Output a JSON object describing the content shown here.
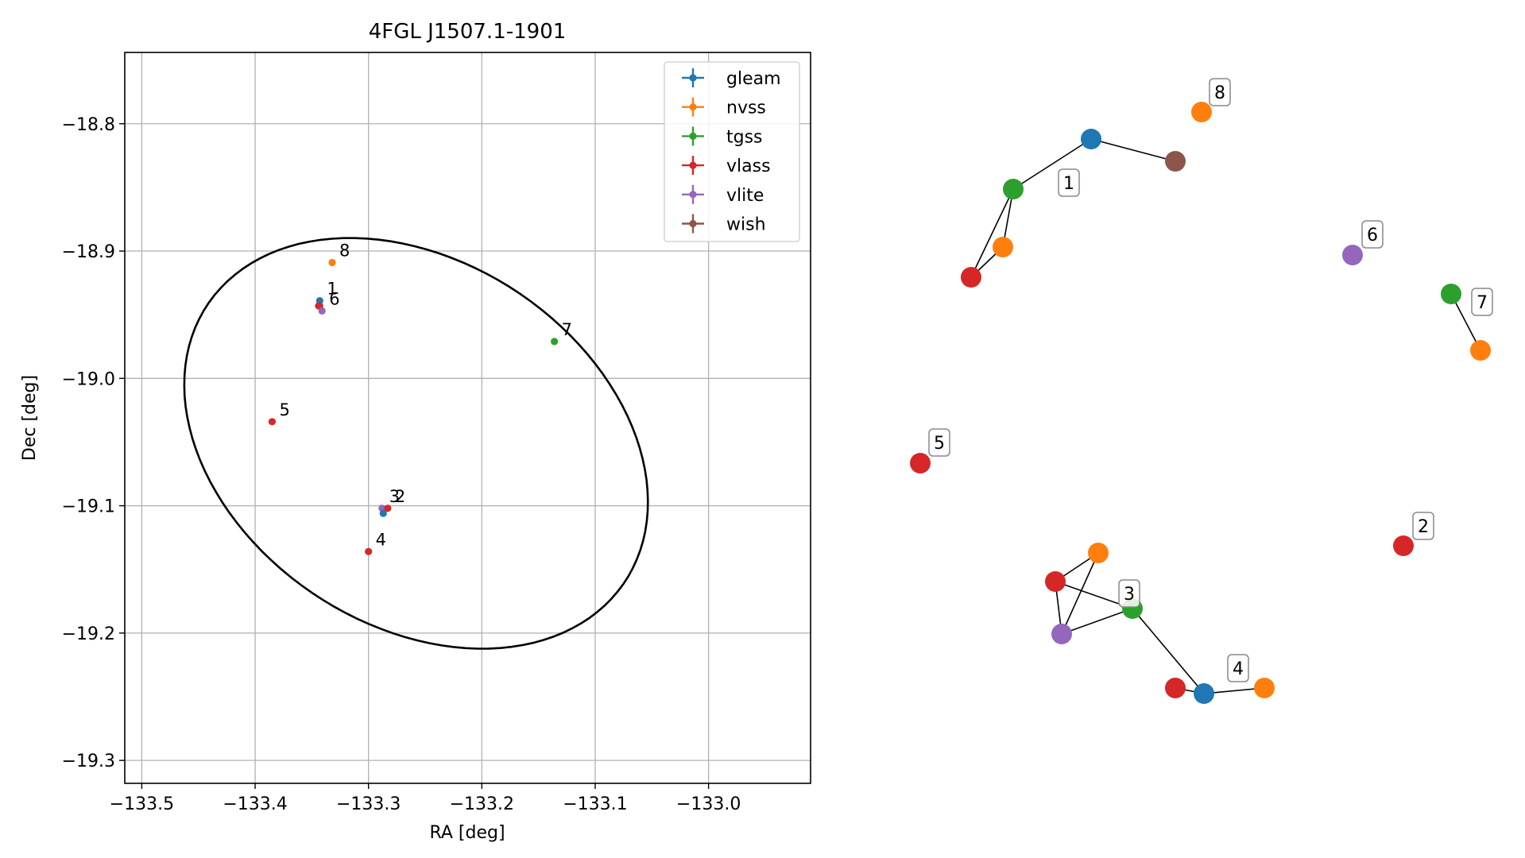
{
  "chart_data": [
    {
      "type": "scatter",
      "title": "4FGL J1507.1-1901",
      "xlabel": "RA [deg]",
      "ylabel": "Dec [deg]",
      "xlim": [
        -133.515,
        -132.91
      ],
      "ylim": [
        -19.318,
        -18.744
      ],
      "xticks": [
        -133.5,
        -133.4,
        -133.3,
        -133.2,
        -133.1,
        -133.0
      ],
      "xtick_labels": [
        "−133.5",
        "−133.4",
        "−133.3",
        "−133.2",
        "−133.1",
        "−133.0"
      ],
      "yticks": [
        -18.8,
        -18.9,
        -19.0,
        -19.1,
        -19.2,
        -19.3
      ],
      "ytick_labels": [
        "−18.8",
        "−18.9",
        "−19.0",
        "−19.1",
        "−19.2",
        "−19.3"
      ],
      "grid": true,
      "legend_position": "top-right",
      "legend": [
        {
          "name": "gleam",
          "color": "#1f77b4"
        },
        {
          "name": "nvss",
          "color": "#ff7f0e"
        },
        {
          "name": "tgss",
          "color": "#2ca02c"
        },
        {
          "name": "vlass",
          "color": "#d62728"
        },
        {
          "name": "vlite",
          "color": "#9467bd"
        },
        {
          "name": "wish",
          "color": "#8c564b"
        }
      ],
      "ellipse": {
        "center": [
          -133.258,
          -19.051
        ],
        "semi_axes": [
          0.215,
          0.147
        ],
        "angle_deg": -25
      },
      "points": [
        {
          "label": "1",
          "x": -133.343,
          "y": -18.939,
          "series": "gleam"
        },
        {
          "label": "",
          "x": -133.343,
          "y": -18.943,
          "series": "wish"
        },
        {
          "label": "",
          "x": -133.344,
          "y": -18.943,
          "series": "vlass"
        },
        {
          "label": "6",
          "x": -133.341,
          "y": -18.947,
          "series": "vlite"
        },
        {
          "label": "8",
          "x": -133.332,
          "y": -18.909,
          "series": "nvss"
        },
        {
          "label": "7",
          "x": -133.136,
          "y": -18.971,
          "series": "tgss"
        },
        {
          "label": "5",
          "x": -133.385,
          "y": -19.034,
          "series": "vlass"
        },
        {
          "label": "3",
          "x": -133.288,
          "y": -19.102,
          "series": "vlite"
        },
        {
          "label": "2",
          "x": -133.283,
          "y": -19.102,
          "series": "vlass"
        },
        {
          "label": "",
          "x": -133.287,
          "y": -19.106,
          "series": "gleam"
        },
        {
          "label": "4",
          "x": -133.3,
          "y": -19.136,
          "series": "vlass"
        }
      ]
    },
    {
      "type": "network",
      "nodes": [
        {
          "id": "g1",
          "series": "gleam"
        },
        {
          "id": "w1",
          "series": "wish"
        },
        {
          "id": "t1",
          "series": "tgss"
        },
        {
          "id": "n1",
          "series": "nvss"
        },
        {
          "id": "v1",
          "series": "vlass"
        },
        {
          "id": "n8",
          "series": "nvss"
        },
        {
          "id": "vi6",
          "series": "vlite"
        },
        {
          "id": "t7",
          "series": "tgss"
        },
        {
          "id": "n7",
          "series": "nvss"
        },
        {
          "id": "v5",
          "series": "vlass"
        },
        {
          "id": "v2",
          "series": "vlass"
        },
        {
          "id": "n3",
          "series": "nvss"
        },
        {
          "id": "v3",
          "series": "vlass"
        },
        {
          "id": "t3",
          "series": "tgss"
        },
        {
          "id": "vi3",
          "series": "vlite"
        },
        {
          "id": "v4",
          "series": "vlass"
        },
        {
          "id": "g4",
          "series": "gleam"
        },
        {
          "id": "n4",
          "series": "nvss"
        }
      ],
      "edges": [
        [
          "g1",
          "w1"
        ],
        [
          "g1",
          "t1"
        ],
        [
          "t1",
          "n1"
        ],
        [
          "t1",
          "v1"
        ],
        [
          "n1",
          "v1"
        ],
        [
          "t7",
          "n7"
        ],
        [
          "n3",
          "v3"
        ],
        [
          "n3",
          "vi3"
        ],
        [
          "v3",
          "vi3"
        ],
        [
          "v3",
          "t3"
        ],
        [
          "vi3",
          "t3"
        ],
        [
          "t3",
          "g4"
        ],
        [
          "v4",
          "g4"
        ],
        [
          "g4",
          "n4"
        ]
      ],
      "group_labels": [
        "1",
        "8",
        "6",
        "7",
        "5",
        "2",
        "3",
        "4"
      ]
    }
  ]
}
